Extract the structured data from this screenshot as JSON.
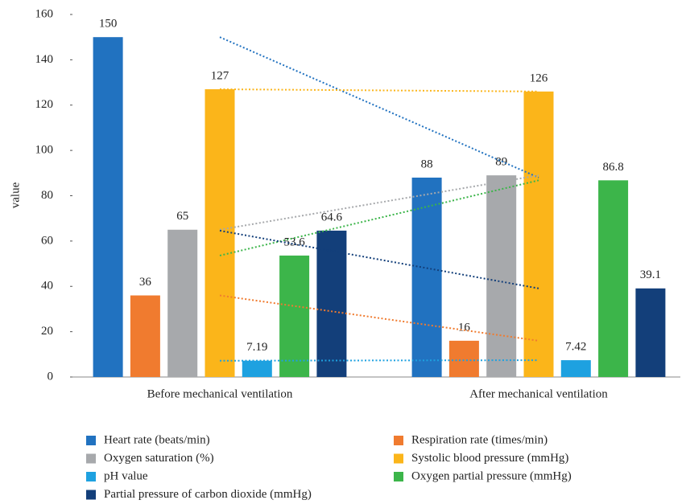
{
  "chart_data": {
    "type": "bar",
    "y_label": "value",
    "categories": [
      "Before mechanical ventilation",
      "After mechanical ventilation"
    ],
    "series": [
      {
        "name": "Heart rate (beats/min)",
        "color": "#2172c0",
        "values": [
          150,
          88
        ]
      },
      {
        "name": "Respiration rate (times/min)",
        "color": "#f07b2f",
        "values": [
          36,
          16
        ]
      },
      {
        "name": "Oxygen saturation (%)",
        "color": "#a7a9ac",
        "values": [
          65,
          89
        ]
      },
      {
        "name": "Systolic blood pressure (mmHg)",
        "color": "#fbb51a",
        "values": [
          127,
          126
        ]
      },
      {
        "name": "pH value",
        "color": "#1ea1e0",
        "values": [
          7.19,
          7.42
        ]
      },
      {
        "name": "Oxygen partial pressure (mmHg)",
        "color": "#3cb54a",
        "values": [
          53.6,
          86.8
        ]
      },
      {
        "name": "Partial pressure of carbon dioxide (mmHg)",
        "color": "#133f7a",
        "values": [
          64.6,
          39.1
        ]
      }
    ],
    "ylim": [
      0,
      160
    ],
    "yticks": [
      0,
      20,
      40,
      60,
      80,
      100,
      120,
      140,
      160
    ],
    "grid": false,
    "trend_lines": true,
    "data_labels": true,
    "legend": "bottom"
  }
}
